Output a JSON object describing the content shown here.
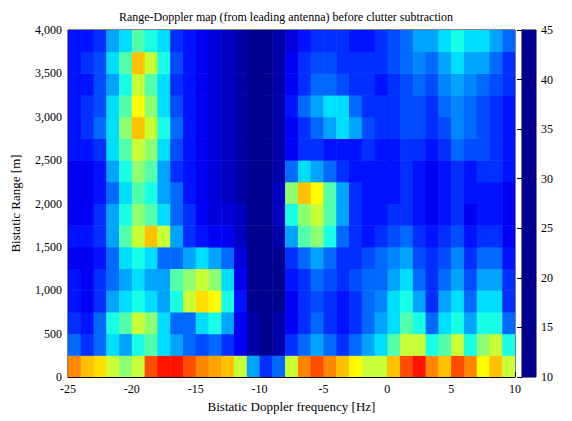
{
  "chart_data": {
    "type": "heatmap",
    "title": "Range-Doppler map (from leading antenna) before clutter subtraction",
    "x_label": "Bistatic Doppler frequency [Hz]",
    "y_label": "Bistatic Range [m]",
    "xlim": [
      -25,
      10
    ],
    "xticks": [
      -25,
      -20,
      -15,
      -10,
      -5,
      0,
      5,
      10
    ],
    "ylim": [
      0,
      4000
    ],
    "yticks": [
      0,
      500,
      1000,
      1500,
      2000,
      2500,
      3000,
      3500,
      4000
    ],
    "x_bins": [
      -25,
      -24,
      -23,
      -22,
      -21,
      -20,
      -19,
      -18,
      -17,
      -16,
      -15,
      -14,
      -13,
      -12,
      -11,
      -10,
      -9,
      -8,
      -7,
      -6,
      -5,
      -4,
      -3,
      -2,
      -1,
      0,
      1,
      2,
      3,
      4,
      5,
      6,
      7,
      8,
      9,
      10
    ],
    "y_bins": [
      0,
      250,
      500,
      750,
      1000,
      1250,
      1500,
      1750,
      2000,
      2250,
      2500,
      2750,
      3000,
      3250,
      3500,
      3750,
      4000
    ],
    "cells": [
      [
        36,
        34,
        33,
        30,
        28,
        30,
        38,
        40,
        40,
        38,
        36,
        35,
        34,
        30,
        20,
        16,
        18,
        30,
        36,
        38,
        36,
        34,
        32,
        30,
        30,
        34,
        38,
        40,
        36,
        34,
        38,
        36,
        32,
        34,
        30
      ],
      [
        18,
        16,
        18,
        22,
        20,
        24,
        26,
        22,
        20,
        18,
        17,
        18,
        16,
        14,
        11,
        10,
        11,
        16,
        18,
        20,
        18,
        16,
        18,
        20,
        22,
        26,
        30,
        30,
        24,
        26,
        30,
        24,
        28,
        30,
        24
      ],
      [
        16,
        15,
        18,
        24,
        26,
        30,
        28,
        22,
        18,
        18,
        22,
        24,
        20,
        14,
        11,
        10,
        11,
        14,
        16,
        18,
        16,
        15,
        16,
        18,
        20,
        22,
        26,
        24,
        18,
        22,
        24,
        20,
        24,
        24,
        18
      ],
      [
        15,
        14,
        16,
        20,
        22,
        24,
        22,
        20,
        24,
        30,
        33,
        32,
        24,
        15,
        10,
        10,
        10,
        14,
        16,
        17,
        16,
        15,
        16,
        18,
        19,
        22,
        24,
        20,
        16,
        20,
        22,
        18,
        22,
        22,
        16
      ],
      [
        15,
        14,
        16,
        18,
        20,
        22,
        20,
        20,
        26,
        28,
        30,
        28,
        22,
        14,
        10,
        10,
        10,
        15,
        16,
        18,
        17,
        16,
        17,
        18,
        18,
        20,
        22,
        18,
        16,
        18,
        20,
        17,
        20,
        20,
        16
      ],
      [
        14,
        14,
        15,
        18,
        22,
        24,
        22,
        18,
        18,
        20,
        22,
        20,
        18,
        13,
        10,
        10,
        10,
        16,
        18,
        20,
        18,
        16,
        16,
        17,
        18,
        19,
        20,
        17,
        16,
        17,
        19,
        16,
        18,
        18,
        15
      ],
      [
        15,
        15,
        16,
        20,
        26,
        30,
        34,
        30,
        20,
        16,
        15,
        14,
        14,
        12,
        10,
        10,
        11,
        20,
        26,
        28,
        24,
        18,
        16,
        15,
        16,
        17,
        18,
        16,
        15,
        16,
        17,
        15,
        16,
        16,
        14
      ],
      [
        14,
        14,
        16,
        20,
        24,
        28,
        26,
        22,
        18,
        16,
        14,
        13,
        13,
        12,
        10,
        10,
        12,
        24,
        28,
        30,
        26,
        20,
        16,
        15,
        15,
        16,
        16,
        15,
        14,
        15,
        16,
        14,
        15,
        15,
        14
      ],
      [
        14,
        14,
        15,
        18,
        22,
        26,
        24,
        20,
        18,
        15,
        14,
        13,
        12,
        11,
        10,
        10,
        12,
        28,
        34,
        32,
        26,
        20,
        16,
        15,
        15,
        15,
        16,
        15,
        14,
        15,
        16,
        15,
        15,
        15,
        14
      ],
      [
        14,
        14,
        15,
        20,
        24,
        28,
        26,
        20,
        16,
        15,
        14,
        13,
        12,
        11,
        10,
        10,
        11,
        18,
        22,
        20,
        18,
        16,
        15,
        15,
        15,
        15,
        16,
        15,
        14,
        15,
        16,
        15,
        16,
        16,
        15
      ],
      [
        15,
        15,
        16,
        22,
        26,
        30,
        28,
        22,
        17,
        15,
        14,
        13,
        12,
        11,
        10,
        10,
        11,
        14,
        16,
        16,
        15,
        15,
        15,
        16,
        15,
        15,
        16,
        16,
        15,
        16,
        18,
        17,
        17,
        16,
        15
      ],
      [
        15,
        16,
        18,
        22,
        28,
        34,
        30,
        24,
        18,
        15,
        14,
        13,
        12,
        11,
        10,
        10,
        11,
        14,
        16,
        18,
        20,
        22,
        20,
        17,
        16,
        16,
        17,
        17,
        16,
        17,
        19,
        18,
        17,
        16,
        15
      ],
      [
        15,
        16,
        17,
        22,
        26,
        32,
        28,
        22,
        17,
        15,
        14,
        13,
        12,
        11,
        10,
        10,
        11,
        15,
        18,
        20,
        22,
        22,
        18,
        16,
        16,
        16,
        17,
        17,
        16,
        18,
        19,
        18,
        17,
        16,
        15
      ],
      [
        15,
        15,
        17,
        20,
        24,
        30,
        26,
        22,
        16,
        15,
        14,
        13,
        12,
        11,
        10,
        10,
        11,
        14,
        16,
        18,
        18,
        17,
        16,
        16,
        15,
        16,
        17,
        18,
        17,
        19,
        20,
        19,
        18,
        17,
        16
      ],
      [
        15,
        16,
        17,
        22,
        26,
        34,
        30,
        24,
        17,
        15,
        14,
        13,
        12,
        11,
        10,
        10,
        11,
        14,
        16,
        17,
        17,
        16,
        16,
        16,
        16,
        17,
        18,
        19,
        18,
        20,
        22,
        20,
        20,
        18,
        16
      ],
      [
        15,
        15,
        16,
        20,
        22,
        26,
        24,
        22,
        16,
        15,
        14,
        13,
        12,
        11,
        10,
        10,
        11,
        13,
        15,
        16,
        16,
        16,
        15,
        15,
        16,
        17,
        18,
        20,
        20,
        22,
        24,
        22,
        22,
        20,
        18
      ]
    ],
    "colorbar": {
      "lim": [
        10,
        45
      ],
      "ticks": [
        10,
        15,
        20,
        25,
        30,
        35,
        40,
        45
      ]
    }
  }
}
